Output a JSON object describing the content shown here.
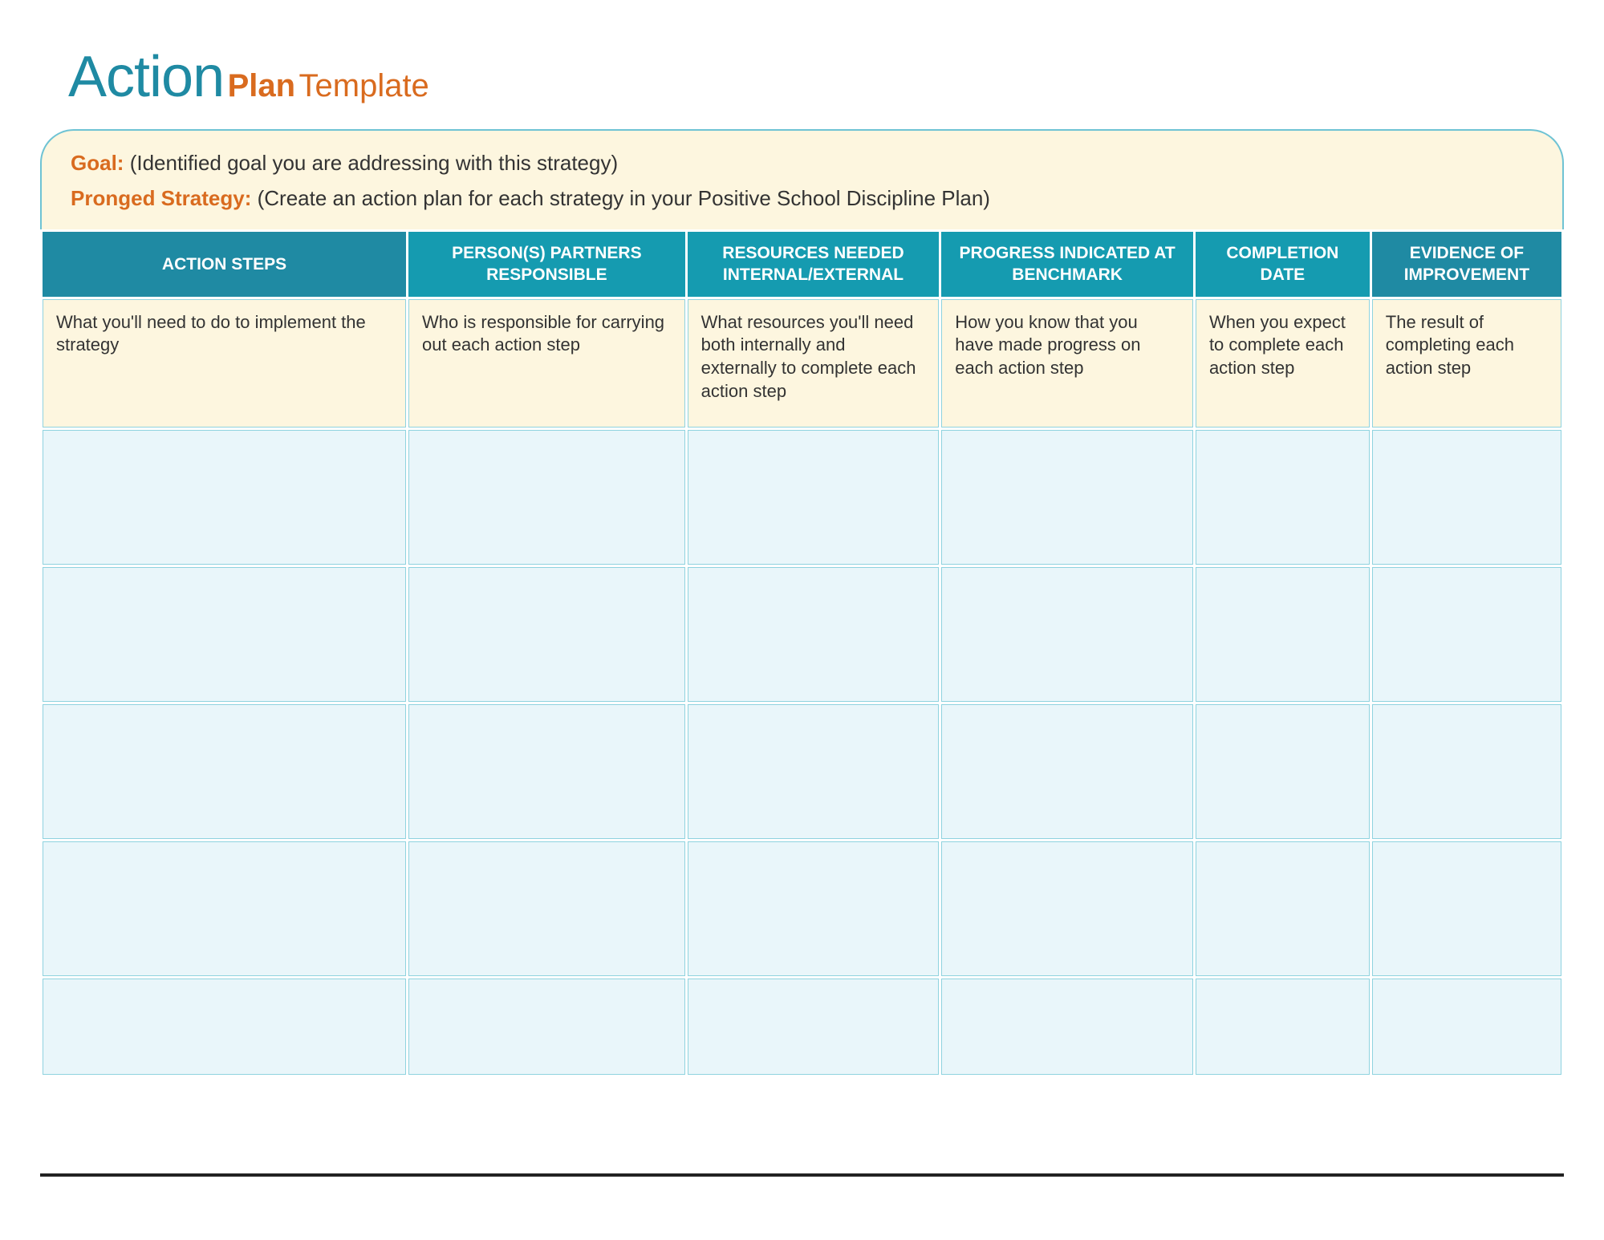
{
  "colors": {
    "title_accent": "#1f8aa3",
    "orange": "#d96b1f",
    "cream_bg": "#fdf6df",
    "box_border": "#6fc3d4",
    "th_bg_outer": "#1f8aa3",
    "th_bg_inner": "#159bb0",
    "td_desc_bg": "#fdf6df",
    "td_empty_bg": "#e9f6fa",
    "cell_border": "#8fd3df",
    "text": "#333333"
  },
  "title": {
    "word1": "Action",
    "word2": "Plan",
    "word3": "Template"
  },
  "meta": {
    "goal_label": "Goal:",
    "goal_text": "(Identified goal you are addressing with this strategy)",
    "strategy_label": "Pronged Strategy:",
    "strategy_text": "(Create an action plan for each strategy in your Positive School Discipline Plan)"
  },
  "table": {
    "headers": [
      "ACTION STEPS",
      "PERSON(S) PARTNERS RESPONSIBLE",
      "RESOURCES NEEDED INTERNAL/EXTERNAL",
      "PROGRESS INDICATED AT BENCHMARK",
      "COMPLETION DATE",
      "EVIDENCE OF IMPROVEMENT"
    ],
    "descriptions": [
      "What you'll need to do to implement the strategy",
      "Who is responsible for carrying out each action step",
      "What resources you'll need both internally and externally to complete each action step",
      "How you know that you have made progress on each action step",
      "When you expect to complete each action step",
      "The result of completing each action step"
    ],
    "empty_rows": 5,
    "column_widths_pct": [
      23.4,
      17.8,
      16.2,
      16.2,
      11.2,
      12.2
    ]
  }
}
